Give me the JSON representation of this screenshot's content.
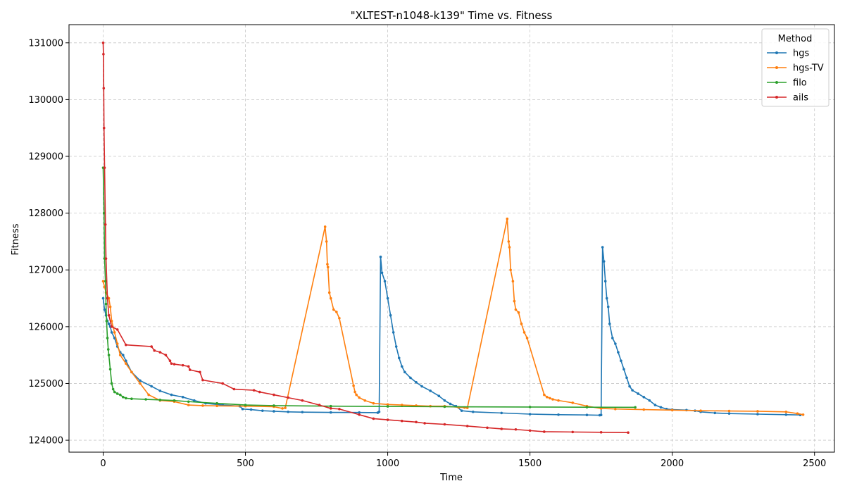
{
  "chart_data": {
    "type": "line",
    "title": "\"XLTEST-n1048-k139\" Time vs. Fitness",
    "xlabel": "Time",
    "ylabel": "Fitness",
    "xlim": [
      -120,
      2570
    ],
    "ylim": [
      123790,
      131320
    ],
    "x_ticks": [
      0,
      500,
      1000,
      1500,
      2000,
      2500
    ],
    "y_ticks": [
      124000,
      125000,
      126000,
      127000,
      128000,
      129000,
      130000,
      131000
    ],
    "grid": true,
    "legend": {
      "title": "Method",
      "position": "top-right"
    },
    "series": [
      {
        "name": "hgs",
        "color": "#1f77b4",
        "x": [
          0,
          5,
          10,
          15,
          20,
          25,
          30,
          40,
          50,
          60,
          70,
          80,
          100,
          130,
          170,
          200,
          240,
          280,
          320,
          360,
          420,
          480,
          490,
          520,
          560,
          600,
          650,
          700,
          800,
          900,
          965,
          970,
          975,
          980,
          990,
          1000,
          1010,
          1020,
          1030,
          1040,
          1050,
          1060,
          1080,
          1100,
          1120,
          1150,
          1180,
          1200,
          1220,
          1240,
          1260,
          1300,
          1400,
          1500,
          1600,
          1700,
          1745,
          1750,
          1755,
          1760,
          1765,
          1770,
          1775,
          1780,
          1790,
          1800,
          1810,
          1820,
          1830,
          1840,
          1850,
          1860,
          1880,
          1900,
          1920,
          1940,
          1960,
          1980,
          2000,
          2050,
          2080,
          2100,
          2150,
          2200,
          2300,
          2400,
          2450
        ],
        "y": [
          126500,
          126300,
          126200,
          126100,
          126050,
          126000,
          125900,
          125800,
          125650,
          125550,
          125500,
          125400,
          125200,
          125050,
          124950,
          124870,
          124800,
          124760,
          124700,
          124650,
          124620,
          124600,
          124550,
          124540,
          124520,
          124510,
          124500,
          124495,
          124490,
          124488,
          124485,
          124500,
          127230,
          126950,
          126800,
          126500,
          126200,
          125900,
          125650,
          125450,
          125300,
          125200,
          125100,
          125020,
          124950,
          124870,
          124780,
          124700,
          124640,
          124600,
          124520,
          124500,
          124480,
          124460,
          124450,
          124445,
          124440,
          124445,
          127400,
          127150,
          126800,
          126500,
          126350,
          126050,
          125800,
          125700,
          125550,
          125400,
          125250,
          125100,
          124950,
          124880,
          124820,
          124760,
          124700,
          124620,
          124580,
          124550,
          124540,
          124530,
          124520,
          124500,
          124480,
          124470,
          124460,
          124450,
          124445
        ]
      },
      {
        "name": "hgs-TV",
        "color": "#ff7f0e",
        "x": [
          0,
          5,
          10,
          20,
          25,
          30,
          40,
          50,
          60,
          80,
          100,
          130,
          160,
          200,
          250,
          300,
          350,
          400,
          500,
          600,
          630,
          640,
          780,
          785,
          788,
          790,
          795,
          800,
          810,
          820,
          830,
          880,
          885,
          890,
          900,
          920,
          950,
          1000,
          1050,
          1100,
          1150,
          1200,
          1250,
          1270,
          1280,
          1420,
          1425,
          1428,
          1432,
          1440,
          1445,
          1450,
          1460,
          1470,
          1480,
          1490,
          1550,
          1560,
          1570,
          1580,
          1600,
          1650,
          1700,
          1750,
          1800,
          1900,
          2000,
          2100,
          2200,
          2300,
          2400,
          2440,
          2460
        ],
        "y": [
          126800,
          126700,
          126600,
          126500,
          126350,
          126100,
          125900,
          125700,
          125500,
          125350,
          125200,
          125000,
          124800,
          124700,
          124680,
          124620,
          124610,
          124605,
          124600,
          124590,
          124560,
          124570,
          127760,
          127500,
          127100,
          127050,
          126600,
          126500,
          126300,
          126260,
          126150,
          124960,
          124850,
          124800,
          124750,
          124700,
          124650,
          124630,
          124620,
          124610,
          124600,
          124600,
          124580,
          124575,
          124570,
          127900,
          127500,
          127400,
          127000,
          126800,
          126450,
          126300,
          126250,
          126050,
          125900,
          125800,
          124800,
          124760,
          124740,
          124720,
          124700,
          124660,
          124600,
          124560,
          124550,
          124540,
          124530,
          124520,
          124515,
          124510,
          124500,
          124470,
          124450
        ]
      },
      {
        "name": "filo",
        "color": "#2ca02c",
        "x": [
          0,
          3,
          5,
          8,
          10,
          12,
          15,
          18,
          20,
          25,
          30,
          35,
          40,
          50,
          60,
          70,
          80,
          100,
          150,
          200,
          250,
          300,
          400,
          500,
          600,
          800,
          1000,
          1200,
          1500,
          1700,
          1870
        ],
        "y": [
          128800,
          128000,
          127200,
          126800,
          126400,
          126100,
          125800,
          125600,
          125500,
          125250,
          125000,
          124900,
          124850,
          124820,
          124800,
          124760,
          124740,
          124730,
          124720,
          124710,
          124700,
          124680,
          124650,
          124620,
          124610,
          124600,
          124595,
          124590,
          124585,
          124582,
          124580
        ]
      },
      {
        "name": "ails",
        "color": "#d62728",
        "x": [
          0,
          1,
          2,
          3,
          5,
          8,
          10,
          15,
          20,
          30,
          50,
          80,
          170,
          180,
          200,
          220,
          235,
          240,
          250,
          280,
          300,
          305,
          340,
          350,
          420,
          460,
          530,
          550,
          600,
          650,
          700,
          760,
          800,
          830,
          900,
          950,
          1000,
          1050,
          1100,
          1130,
          1200,
          1280,
          1350,
          1400,
          1450,
          1500,
          1550,
          1650,
          1750,
          1845
        ],
        "y": [
          131000,
          130800,
          130200,
          129500,
          128800,
          127800,
          127200,
          126500,
          126200,
          126000,
          125950,
          125680,
          125650,
          125580,
          125550,
          125500,
          125400,
          125350,
          125340,
          125320,
          125300,
          125240,
          125200,
          125060,
          125000,
          124900,
          124880,
          124850,
          124800,
          124750,
          124700,
          124620,
          124560,
          124550,
          124450,
          124380,
          124360,
          124340,
          124320,
          124300,
          124280,
          124250,
          124220,
          124200,
          124190,
          124170,
          124150,
          124145,
          124140,
          124135
        ]
      }
    ]
  }
}
